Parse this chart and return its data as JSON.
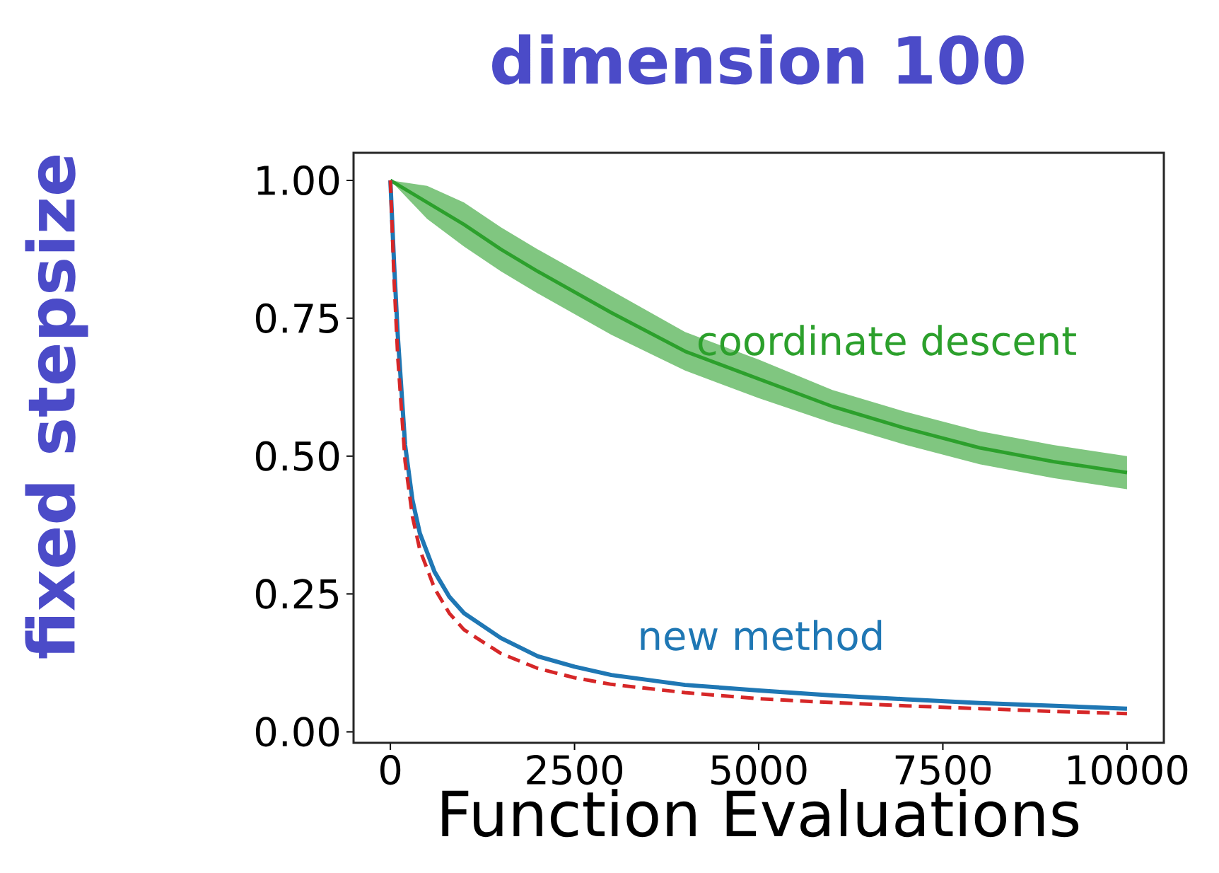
{
  "chart_data": {
    "type": "line",
    "title": "dimension 100",
    "xlabel": "Function Evaluations",
    "ylabel": "fixed stepsize",
    "xlim": [
      -500,
      10500
    ],
    "ylim": [
      -0.02,
      1.05
    ],
    "xticks": [
      0,
      2500,
      5000,
      7500,
      10000
    ],
    "yticks": [
      {
        "value": 0,
        "label": "0.00"
      },
      {
        "value": 0.25,
        "label": "0.25"
      },
      {
        "value": 0.5,
        "label": "0.50"
      },
      {
        "value": 0.75,
        "label": "0.75"
      },
      {
        "value": 1,
        "label": "1.00"
      }
    ],
    "grid": false,
    "legend": false,
    "marker": "none",
    "series": [
      {
        "name": "coordinate descent",
        "color": "#2ca02c",
        "line_style": "solid",
        "x": [
          0,
          500,
          1000,
          1500,
          2000,
          3000,
          4000,
          5000,
          6000,
          7000,
          8000,
          9000,
          10000
        ],
        "values": [
          1.0,
          0.96,
          0.92,
          0.875,
          0.835,
          0.76,
          0.69,
          0.64,
          0.59,
          0.55,
          0.515,
          0.49,
          0.47
        ],
        "lower": [
          1.0,
          0.93,
          0.88,
          0.835,
          0.795,
          0.72,
          0.655,
          0.605,
          0.56,
          0.52,
          0.485,
          0.46,
          0.44
        ],
        "upper": [
          1.0,
          0.99,
          0.96,
          0.915,
          0.875,
          0.8,
          0.725,
          0.675,
          0.62,
          0.58,
          0.545,
          0.52,
          0.5
        ]
      },
      {
        "name": "new method",
        "color": "#1f77b4",
        "line_style": "solid",
        "x": [
          0,
          50,
          100,
          200,
          300,
          400,
          600,
          800,
          1000,
          1500,
          2000,
          2500,
          3000,
          4000,
          5000,
          6000,
          7000,
          8000,
          9000,
          10000
        ],
        "values": [
          1.0,
          0.85,
          0.72,
          0.52,
          0.42,
          0.36,
          0.29,
          0.245,
          0.215,
          0.17,
          0.137,
          0.118,
          0.103,
          0.085,
          0.075,
          0.066,
          0.059,
          0.052,
          0.047,
          0.042
        ]
      },
      {
        "color": "#d62728",
        "line_style": "dashed",
        "x": [
          0,
          50,
          100,
          200,
          300,
          400,
          600,
          800,
          1000,
          1500,
          2000,
          2500,
          3000,
          4000,
          5000,
          6000,
          7000,
          8000,
          9000,
          10000
        ],
        "values": [
          1.0,
          0.82,
          0.68,
          0.49,
          0.39,
          0.33,
          0.26,
          0.215,
          0.185,
          0.142,
          0.115,
          0.098,
          0.086,
          0.071,
          0.06,
          0.053,
          0.047,
          0.042,
          0.037,
          0.033
        ]
      }
    ]
  }
}
